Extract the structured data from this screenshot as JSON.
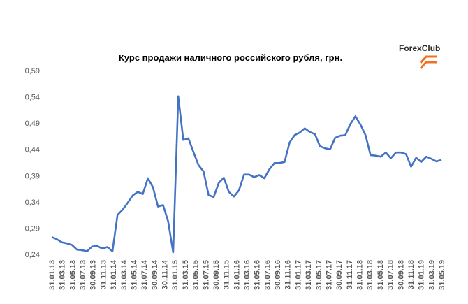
{
  "brand": {
    "name_part1": "Forex",
    "name_part2": "Club",
    "color_text": "#2b2b2b",
    "color_accent": "#f37021"
  },
  "chart_data": {
    "type": "line",
    "title": "Курс продажи наличного российского рубля, грн.",
    "xlabel": "",
    "ylabel": "",
    "ylim": [
      0.24,
      0.59
    ],
    "yticks": [
      "0,24",
      "0,29",
      "0,34",
      "0,39",
      "0,44",
      "0,49",
      "0,54",
      "0,59"
    ],
    "ytick_values": [
      0.24,
      0.29,
      0.34,
      0.39,
      0.44,
      0.49,
      0.54,
      0.59
    ],
    "grid": false,
    "line_color": "#4472c4",
    "x_tick_labels": [
      "31.01.13",
      "31.03.13",
      "31.05.13",
      "31.07.13",
      "30.09.13",
      "31.11.13",
      "31.01.14",
      "31.03.14",
      "31.05.14",
      "31.07.14",
      "30.09.14",
      "30.11.14",
      "31.01.15",
      "31.03.15",
      "31.05.15",
      "31.07.15",
      "30.09.15",
      "31.11.15",
      "31.01.16",
      "31.03.16",
      "31.05.16",
      "31.07.16",
      "30.09.16",
      "31.11.16",
      "31.01.17",
      "31.03.17",
      "31.05.17",
      "31.07.17",
      "30.09.17",
      "31.11.17",
      "31.01.18",
      "31.03.18",
      "31.05.18",
      "31.07.18",
      "30.09.18",
      "31.11.18",
      "31.01.19",
      "31.03.19",
      "31.05.19"
    ],
    "series": [
      {
        "values": [
          0.273,
          0.269,
          0.263,
          0.261,
          0.258,
          0.249,
          0.248,
          0.246,
          0.255,
          0.256,
          0.251,
          0.254,
          0.246,
          0.315,
          0.325,
          0.338,
          0.352,
          0.359,
          0.355,
          0.385,
          0.368,
          0.331,
          0.334,
          0.303,
          0.244,
          0.541,
          0.458,
          0.461,
          0.435,
          0.41,
          0.398,
          0.353,
          0.349,
          0.376,
          0.386,
          0.359,
          0.35,
          0.362,
          0.392,
          0.392,
          0.387,
          0.391,
          0.385,
          0.402,
          0.414,
          0.414,
          0.416,
          0.453,
          0.467,
          0.472,
          0.48,
          0.473,
          0.469,
          0.446,
          0.442,
          0.44,
          0.462,
          0.466,
          0.467,
          0.488,
          0.503,
          0.487,
          0.467,
          0.429,
          0.428,
          0.426,
          0.434,
          0.423,
          0.434,
          0.434,
          0.431,
          0.407,
          0.424,
          0.416,
          0.426,
          0.422,
          0.417,
          0.42
        ]
      }
    ]
  }
}
